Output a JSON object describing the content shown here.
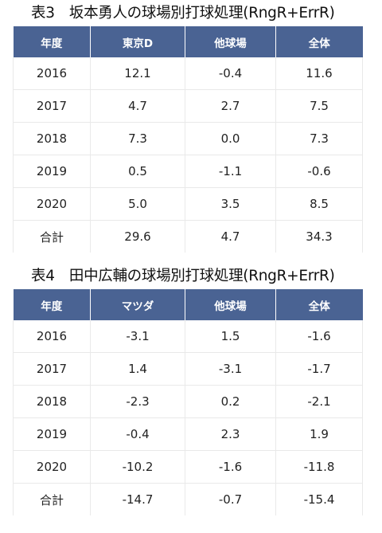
{
  "tables": [
    {
      "title": "表3　坂本勇人の球場別打球処理(RngR+ErrR)",
      "headers": [
        "年度",
        "東京D",
        "他球場",
        "全体"
      ],
      "rows": [
        [
          "2016",
          "12.1",
          "-0.4",
          "11.6"
        ],
        [
          "2017",
          "4.7",
          "2.7",
          "7.5"
        ],
        [
          "2018",
          "7.3",
          "0.0",
          "7.3"
        ],
        [
          "2019",
          "0.5",
          "-1.1",
          "-0.6"
        ],
        [
          "2020",
          "5.0",
          "3.5",
          "8.5"
        ],
        [
          "合計",
          "29.6",
          "4.7",
          "34.3"
        ]
      ]
    },
    {
      "title": "表4　田中広輔の球場別打球処理(RngR+ErrR)",
      "headers": [
        "年度",
        "マツダ",
        "他球場",
        "全体"
      ],
      "rows": [
        [
          "2016",
          "-3.1",
          "1.5",
          "-1.6"
        ],
        [
          "2017",
          "1.4",
          "-3.1",
          "-1.7"
        ],
        [
          "2018",
          "-2.3",
          "0.2",
          "-2.1"
        ],
        [
          "2019",
          "-0.4",
          "2.3",
          "1.9"
        ],
        [
          "2020",
          "-10.2",
          "-1.6",
          "-11.8"
        ],
        [
          "合計",
          "-14.7",
          "-0.7",
          "-15.4"
        ]
      ]
    }
  ],
  "colors": {
    "header_bg": "#4a6393",
    "header_text": "#ffffff",
    "grid_line": "#e9e9e9"
  }
}
